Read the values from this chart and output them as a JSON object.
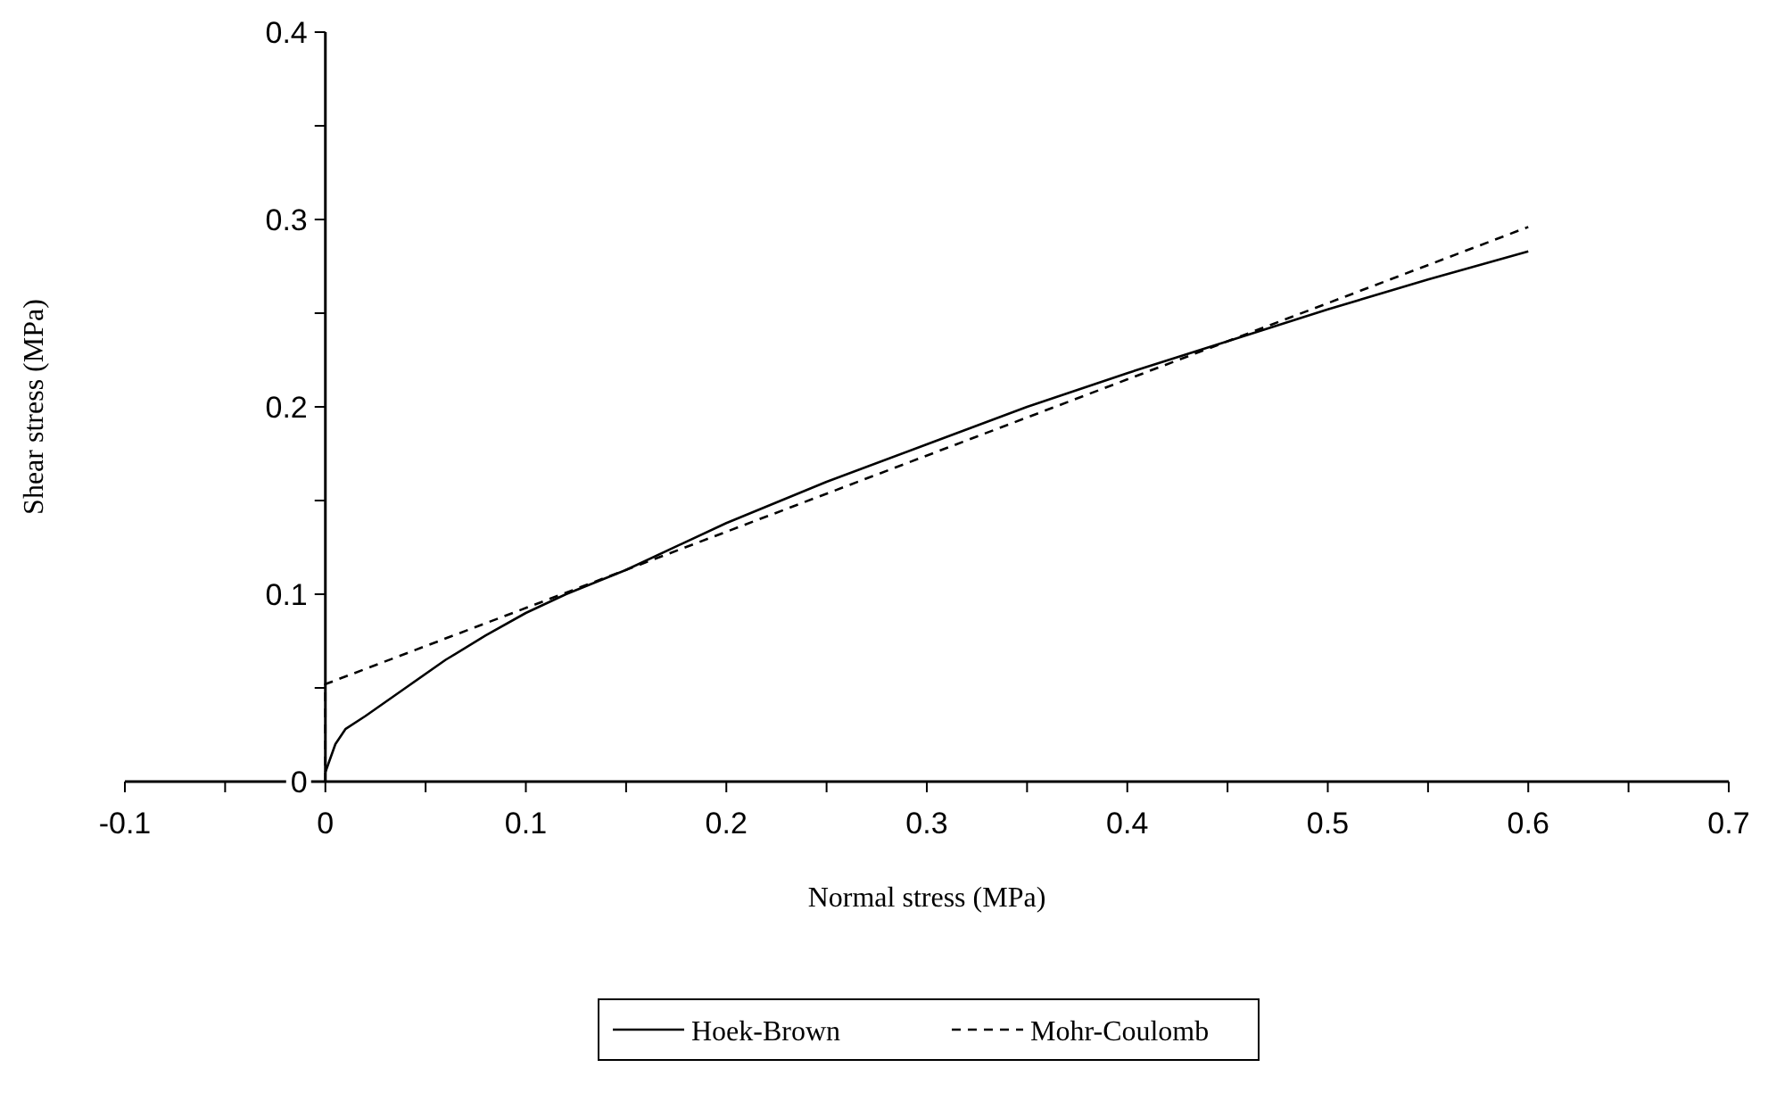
{
  "chart_data": {
    "type": "line",
    "xlabel": "Normal stress (MPa)",
    "ylabel": "Shear stress (MPa)",
    "xlim": [
      -0.1,
      0.7
    ],
    "ylim": [
      0,
      0.4
    ],
    "xticks": [
      -0.1,
      {
        "value": -0.05,
        "label": null
      },
      0,
      {
        "value": 0.05,
        "label": null
      },
      0.1,
      {
        "value": 0.15,
        "label": null
      },
      0.2,
      {
        "value": 0.25,
        "label": null
      },
      0.3,
      {
        "value": 0.35,
        "label": null
      },
      0.4,
      {
        "value": 0.45,
        "label": null
      },
      0.5,
      {
        "value": 0.55,
        "label": null
      },
      0.6,
      {
        "value": 0.65,
        "label": null
      },
      0.7
    ],
    "yticks": [
      0,
      {
        "value": 0.05,
        "label": null
      },
      0.1,
      {
        "value": 0.15,
        "label": null
      },
      0.2,
      {
        "value": 0.25,
        "label": null
      },
      0.3,
      {
        "value": 0.35,
        "label": null
      },
      0.4
    ],
    "grid": false,
    "legend": "bottom",
    "series": [
      {
        "name": "Hoek-Brown",
        "color": "#000000",
        "line_style": "solid",
        "x": [
          0,
          0.005,
          0.01,
          0.02,
          0.04,
          0.06,
          0.08,
          0.1,
          0.12,
          0.15,
          0.2,
          0.25,
          0.3,
          0.35,
          0.4,
          0.45,
          0.5,
          0.55,
          0.6
        ],
        "values": [
          0.005,
          0.02,
          0.028,
          0.035,
          0.05,
          0.065,
          0.078,
          0.09,
          0.1,
          0.113,
          0.138,
          0.16,
          0.18,
          0.2,
          0.218,
          0.235,
          0.252,
          0.268,
          0.283
        ]
      },
      {
        "name": "Mohr-Coulomb",
        "color": "#000000",
        "line_style": "dashed",
        "x": [
          0,
          0,
          0.6
        ],
        "values": [
          0,
          0.052,
          0.296
        ]
      }
    ]
  }
}
